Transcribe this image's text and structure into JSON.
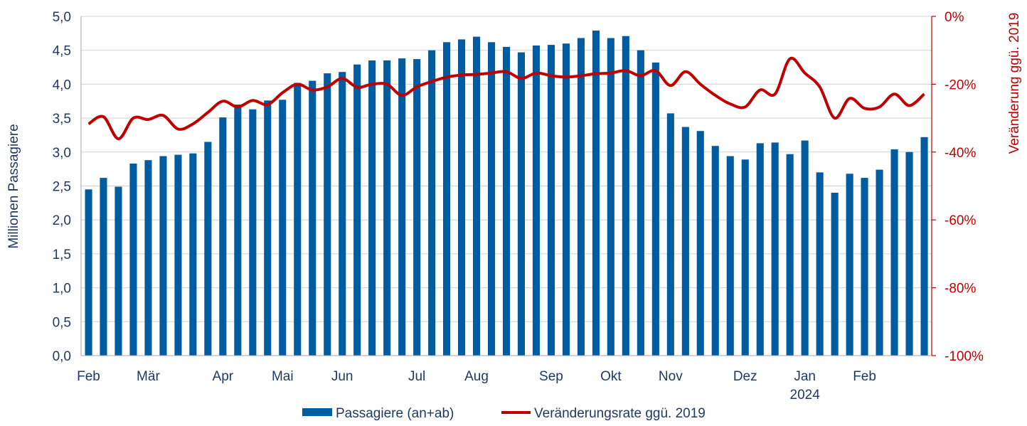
{
  "chart_data": {
    "type": "bar+line",
    "title": "",
    "y_left": {
      "label": "Millionen Passagiere",
      "lim": [
        0,
        5
      ],
      "ticks": [
        "0,0",
        "0,5",
        "1,0",
        "1,5",
        "2,0",
        "2,5",
        "3,0",
        "3,5",
        "4,0",
        "4,5",
        "5,0"
      ],
      "color": "#1f3864"
    },
    "y_right": {
      "label": "Veränderung ggü. 2019",
      "lim": [
        -100,
        0
      ],
      "ticks": [
        "-100%",
        "-80%",
        "-60%",
        "-40%",
        "-20%",
        "0%"
      ],
      "color": "#c00000"
    },
    "x_labels": [
      {
        "text": "Feb",
        "at": 0
      },
      {
        "text": "Mär",
        "at": 4
      },
      {
        "text": "Apr",
        "at": 9
      },
      {
        "text": "Mai",
        "at": 13
      },
      {
        "text": "Jun",
        "at": 17
      },
      {
        "text": "Jul",
        "at": 22
      },
      {
        "text": "Aug",
        "at": 26
      },
      {
        "text": "Sep",
        "at": 31
      },
      {
        "text": "Okt",
        "at": 35
      },
      {
        "text": "Nov",
        "at": 39
      },
      {
        "text": "Dez",
        "at": 44
      },
      {
        "text": "Jan",
        "at": 48
      },
      {
        "text": "Feb",
        "at": 52
      }
    ],
    "x_year_label": {
      "text": "2024",
      "at": 48
    },
    "grid": true,
    "legend_position": "bottom",
    "series": [
      {
        "name": "Passagiere (an+ab)",
        "type": "bar",
        "color": "#005ca0",
        "values": [
          2.45,
          2.62,
          2.49,
          2.83,
          2.88,
          2.94,
          2.96,
          2.98,
          3.15,
          3.51,
          3.7,
          3.63,
          3.76,
          3.77,
          4.02,
          4.05,
          4.16,
          4.18,
          4.29,
          4.35,
          4.35,
          4.38,
          4.37,
          4.5,
          4.62,
          4.66,
          4.7,
          4.62,
          4.55,
          4.47,
          4.57,
          4.58,
          4.6,
          4.68,
          4.79,
          4.68,
          4.71,
          4.5,
          4.32,
          3.57,
          3.37,
          3.31,
          3.09,
          2.94,
          2.89,
          3.13,
          3.14,
          2.97,
          3.17,
          2.7,
          2.4,
          2.68,
          2.62,
          2.74,
          3.04,
          3.0,
          3.22
        ]
      },
      {
        "name": "Veränderungsrate ggü. 2019",
        "type": "line",
        "color": "#c00000",
        "values": [
          -31.7,
          -29.6,
          -36.1,
          -30.0,
          -30.4,
          -29.2,
          -33.2,
          -31.7,
          -28.3,
          -25.0,
          -26.7,
          -24.8,
          -26.0,
          -22.5,
          -20.0,
          -21.7,
          -20.8,
          -18.3,
          -20.9,
          -20.0,
          -20.0,
          -23.3,
          -20.8,
          -19.2,
          -17.9,
          -17.3,
          -17.1,
          -16.7,
          -16.3,
          -18.3,
          -16.7,
          -17.5,
          -17.9,
          -17.5,
          -16.9,
          -16.7,
          -16.0,
          -17.5,
          -16.0,
          -20.4,
          -16.3,
          -20.0,
          -23.3,
          -25.8,
          -26.7,
          -21.7,
          -22.9,
          -12.5,
          -16.7,
          -20.8,
          -30.0,
          -24.2,
          -27.1,
          -26.7,
          -22.9,
          -26.3,
          -22.9
        ]
      }
    ]
  }
}
